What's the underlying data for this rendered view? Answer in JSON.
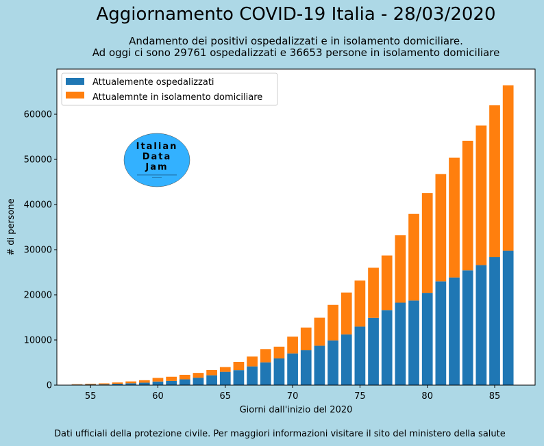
{
  "title": "Aggiornamento COVID-19 Italia - 28/03/2020",
  "subtitle_line1": "Andamento dei positivi ospedalizzati e in isolamento domiciliare.",
  "subtitle_line2": "Ad oggi ci sono 29761 ospedalizzati e 36653 persone in isolamento domiciliare",
  "footer": "Dati ufficiali della protezione civile. Per maggiori informazioni visitare il sito del ministero della salute",
  "logo": {
    "line1": "Italian",
    "line2": "Data",
    "line3": "Jam",
    "tagline": ""
  },
  "colors": {
    "background": "#add8e6",
    "plot_bg": "#ffffff",
    "series1": "#1f77b4",
    "series2": "#ff7f0e",
    "logo_fill": "#33b1ff"
  },
  "chart_data": {
    "type": "bar",
    "stacked": true,
    "title": "Aggiornamento COVID-19 Italia - 28/03/2020",
    "xlabel": "Giorni dall'inizio del 2020",
    "ylabel": "# di persone",
    "xlim": [
      52.5,
      88
    ],
    "ylim": [
      0,
      70000
    ],
    "xticks": [
      55,
      60,
      65,
      70,
      75,
      80,
      85
    ],
    "yticks": [
      0,
      10000,
      20000,
      30000,
      40000,
      50000,
      60000
    ],
    "grid": false,
    "legend_position": "top-left",
    "x": [
      54,
      55,
      56,
      57,
      58,
      59,
      60,
      61,
      62,
      63,
      64,
      65,
      66,
      67,
      68,
      69,
      70,
      71,
      72,
      73,
      74,
      75,
      76,
      77,
      78,
      79,
      80,
      81,
      82,
      83,
      84,
      85,
      86
    ],
    "series": [
      {
        "name": "Attualemente ospedalizzati",
        "values": [
          127,
          150,
          164,
          304,
          409,
          543,
          798,
          927,
          1281,
          1641,
          2180,
          2936,
          3311,
          4147,
          5049,
          5915,
          7024,
          7721,
          8725,
          9908,
          11239,
          12963,
          14889,
          16620,
          18257,
          18734,
          20440,
          22979,
          23845,
          25417,
          26581,
          28339,
          29761
        ]
      },
      {
        "name": "Attualemnte in isolamento domiciliare",
        "values": [
          94,
          162,
          221,
          284,
          412,
          543,
          798,
          927,
          1000,
          1065,
          1155,
          1060,
          1843,
          2180,
          2936,
          2599,
          3724,
          5036,
          6201,
          7860,
          9268,
          10197,
          11108,
          12090,
          14935,
          19185,
          22116,
          23783,
          26522,
          28697,
          30920,
          33648,
          36653
        ]
      }
    ]
  }
}
